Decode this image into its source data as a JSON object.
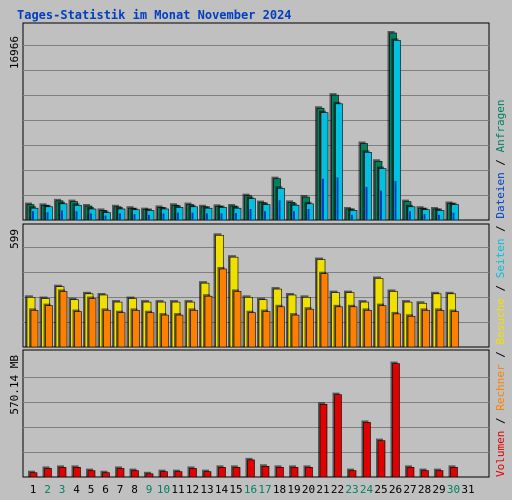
{
  "title": "Tages-Statistik im Monat November 2024",
  "colors": {
    "background": "#c0c0c0",
    "plot_background": "#c0c0c0",
    "grid": "#808080",
    "title": "#0040c0",
    "anfragen": "#008060",
    "dateien": "#0040c0",
    "seiten": "#00c0e0",
    "besuche": "#f0e000",
    "rechner": "#ff8000",
    "volumen": "#e00000",
    "weekday_label": "#000000",
    "weekend_label": "#008060"
  },
  "chart_data": [
    {
      "type": "bar",
      "name": "requests-files-pages",
      "ymax_label": "16966",
      "ylim": [
        0,
        16966
      ],
      "grid": true,
      "categories": [
        "1",
        "2",
        "3",
        "4",
        "5",
        "6",
        "7",
        "8",
        "9",
        "10",
        "11",
        "12",
        "13",
        "14",
        "15",
        "16",
        "17",
        "18",
        "19",
        "20",
        "21",
        "22",
        "23",
        "24",
        "25",
        "26",
        "27",
        "28",
        "29",
        "30",
        "31"
      ],
      "series": [
        {
          "name": "Anfragen",
          "color": "#008060",
          "values": [
            1400,
            1330,
            1740,
            1670,
            1270,
            870,
            1200,
            1070,
            940,
            1140,
            1340,
            1400,
            1200,
            1240,
            1270,
            2210,
            1580,
            3750,
            1600,
            2080,
            10140,
            11330,
            1000,
            6940,
            5330,
            16966,
            1670,
            1070,
            1000,
            1500,
            0
          ]
        },
        {
          "name": "Dateien",
          "color": "#0040c0",
          "values": [
            800,
            700,
            870,
            800,
            600,
            400,
            600,
            530,
            470,
            600,
            670,
            670,
            600,
            600,
            630,
            1000,
            800,
            1800,
            800,
            1000,
            3740,
            3870,
            470,
            3000,
            2670,
            3540,
            800,
            530,
            470,
            670,
            0
          ]
        },
        {
          "name": "Seiten",
          "color": "#00c0e0",
          "values": [
            1070,
            1200,
            1470,
            1330,
            1000,
            670,
            1000,
            930,
            870,
            1000,
            1140,
            1200,
            1070,
            1140,
            1070,
            1940,
            1400,
            2870,
            1340,
            1470,
            9740,
            10540,
            870,
            6140,
            4670,
            16290,
            1200,
            940,
            870,
            1400,
            0
          ]
        }
      ]
    },
    {
      "type": "bar",
      "name": "visits-hosts",
      "ymax_label": "599",
      "ylim": [
        0,
        599
      ],
      "grid": true,
      "categories": [
        "1",
        "2",
        "3",
        "4",
        "5",
        "6",
        "7",
        "8",
        "9",
        "10",
        "11",
        "12",
        "13",
        "14",
        "15",
        "16",
        "17",
        "18",
        "19",
        "20",
        "21",
        "22",
        "23",
        "24",
        "25",
        "26",
        "27",
        "28",
        "29",
        "30",
        "31"
      ],
      "series": [
        {
          "name": "Besuche",
          "color": "#f0e000",
          "values": [
            252,
            246,
            306,
            240,
            270,
            264,
            228,
            246,
            228,
            228,
            228,
            228,
            324,
            567,
            456,
            252,
            240,
            294,
            264,
            252,
            444,
            276,
            276,
            228,
            348,
            282,
            228,
            222,
            270,
            270,
            0
          ]
        },
        {
          "name": "Rechner",
          "color": "#ff8000",
          "values": [
            186,
            210,
            282,
            180,
            246,
            186,
            174,
            186,
            174,
            162,
            162,
            186,
            258,
            396,
            282,
            174,
            180,
            204,
            162,
            192,
            372,
            204,
            204,
            186,
            210,
            168,
            156,
            186,
            186,
            180,
            0
          ]
        }
      ]
    },
    {
      "type": "bar",
      "name": "volume",
      "ymax_label": "570.14 MB",
      "ylim": [
        0,
        570.14
      ],
      "grid": true,
      "categories": [
        "1",
        "2",
        "3",
        "4",
        "5",
        "6",
        "7",
        "8",
        "9",
        "10",
        "11",
        "12",
        "13",
        "14",
        "15",
        "16",
        "17",
        "18",
        "19",
        "20",
        "21",
        "22",
        "23",
        "24",
        "25",
        "26",
        "27",
        "28",
        "29",
        "30",
        "31"
      ],
      "series": [
        {
          "name": "Volumen",
          "color": "#e00000",
          "values": [
            20,
            40,
            45,
            45,
            30,
            20,
            40,
            30,
            15,
            25,
            25,
            40,
            25,
            45,
            45,
            80,
            50,
            45,
            45,
            45,
            340,
            385,
            30,
            255,
            170,
            530,
            45,
            30,
            30,
            45,
            0
          ]
        }
      ]
    }
  ],
  "x_labels": [
    "1",
    "2",
    "3",
    "4",
    "5",
    "6",
    "7",
    "8",
    "9",
    "10",
    "11",
    "12",
    "13",
    "14",
    "15",
    "16",
    "17",
    "18",
    "19",
    "20",
    "21",
    "22",
    "23",
    "24",
    "25",
    "26",
    "27",
    "28",
    "29",
    "30",
    "31"
  ],
  "weekend_days": [
    "2",
    "3",
    "9",
    "10",
    "16",
    "17",
    "23",
    "24",
    "30"
  ],
  "right_legend": [
    {
      "text": "Volumen",
      "color": "#e00000"
    },
    {
      "text": "/",
      "color": "#000000"
    },
    {
      "text": "Rechner",
      "color": "#ff8000"
    },
    {
      "text": "/",
      "color": "#000000"
    },
    {
      "text": "Besuche",
      "color": "#f0e000"
    },
    {
      "text": "/",
      "color": "#000000"
    },
    {
      "text": "Seiten",
      "color": "#00c0e0"
    },
    {
      "text": "/",
      "color": "#000000"
    },
    {
      "text": "Dateien",
      "color": "#0040c0"
    },
    {
      "text": "/",
      "color": "#000000"
    },
    {
      "text": "Anfragen",
      "color": "#008060"
    }
  ]
}
